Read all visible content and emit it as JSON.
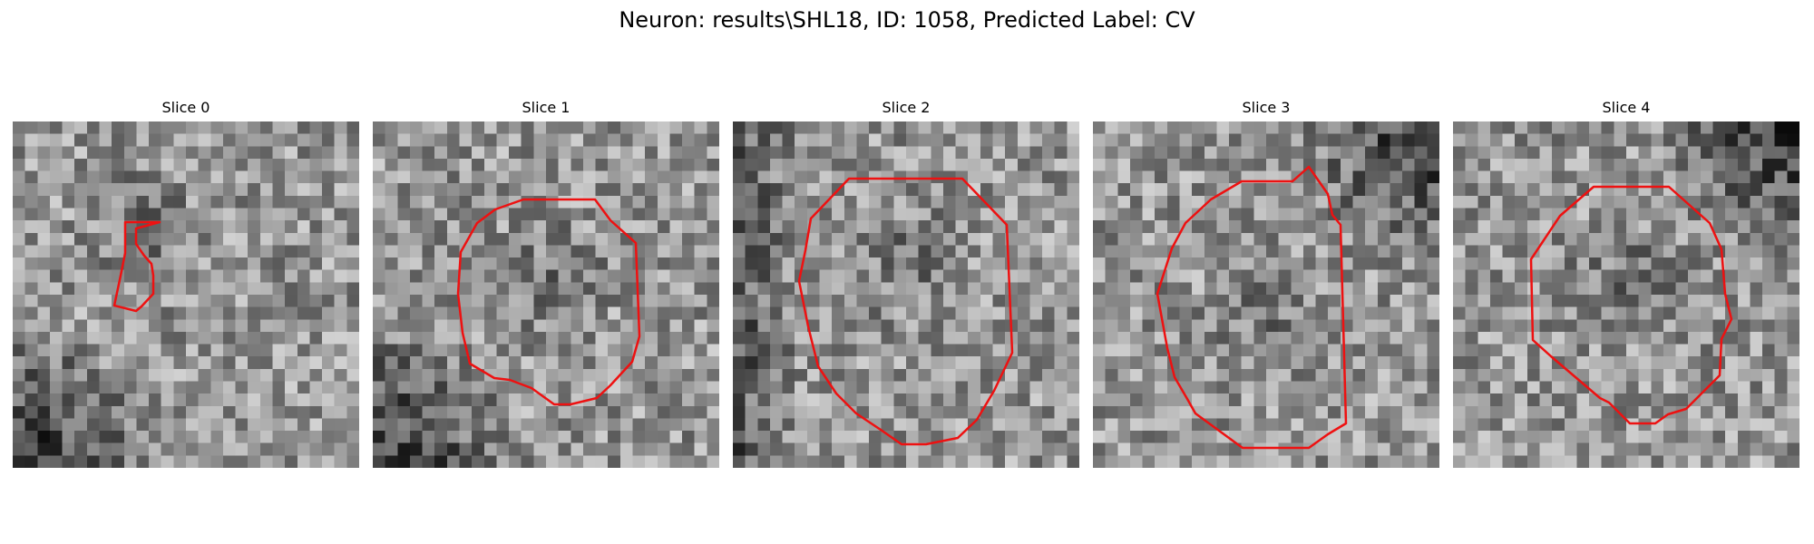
{
  "figure": {
    "title": "Neuron: results\\SHL18, ID: 1058, Predicted Label: CV",
    "contour_color": "#ee1111",
    "colormap": "grayscale",
    "grid_size": 28,
    "panels": [
      {
        "title": "Slice 0",
        "seed": 11,
        "dark_corner": "bottom-left",
        "dark_blob": [
          0.38,
          0.32
        ]
      },
      {
        "title": "Slice 1",
        "seed": 23,
        "dark_corner": "bottom-left",
        "dark_blob": [
          0.5,
          0.45
        ]
      },
      {
        "title": "Slice 2",
        "seed": 37,
        "dark_corner": "left",
        "dark_blob": [
          0.5,
          0.4
        ]
      },
      {
        "title": "Slice 3",
        "seed": 51,
        "dark_corner": "top-right",
        "dark_blob": [
          0.5,
          0.55
        ]
      },
      {
        "title": "Slice 4",
        "seed": 67,
        "dark_corner": "top-right",
        "dark_blob": [
          0.5,
          0.45
        ]
      }
    ]
  }
}
